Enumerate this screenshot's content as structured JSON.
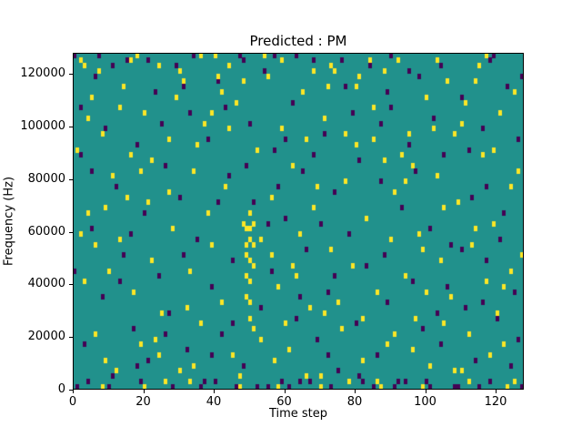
{
  "chart_data": {
    "type": "heatmap",
    "title": "Predicted : PM",
    "xlabel": "Time step",
    "ylabel": "Frequency (Hz)",
    "x_range": [
      0,
      128
    ],
    "y_range": [
      0,
      128000
    ],
    "x_ticks": [
      0,
      20,
      40,
      60,
      80,
      100,
      120
    ],
    "y_ticks": [
      0,
      20000,
      40000,
      60000,
      80000,
      100000,
      120000
    ],
    "grid_cols": 128,
    "grid_rows": 64,
    "legend": "none",
    "grid": false,
    "colors": {
      "background": "#21918c",
      "high": "#fde725",
      "low": "#440154",
      "frame": "#000000"
    },
    "cells": {
      "yellow": [
        [
          2,
          62
        ],
        [
          5,
          55
        ],
        [
          8,
          48
        ],
        [
          3,
          20
        ],
        [
          4,
          33
        ],
        [
          6,
          10
        ],
        [
          9,
          5
        ],
        [
          11,
          40
        ],
        [
          13,
          28
        ],
        [
          14,
          57
        ],
        [
          16,
          44
        ],
        [
          17,
          18
        ],
        [
          19,
          8
        ],
        [
          20,
          52
        ],
        [
          21,
          35
        ],
        [
          22,
          24
        ],
        [
          24,
          61
        ],
        [
          25,
          14
        ],
        [
          27,
          47
        ],
        [
          28,
          30
        ],
        [
          30,
          3
        ],
        [
          31,
          58
        ],
        [
          33,
          22
        ],
        [
          34,
          41
        ],
        [
          36,
          12
        ],
        [
          37,
          50
        ],
        [
          39,
          27
        ],
        [
          40,
          63
        ],
        [
          42,
          16
        ],
        [
          43,
          38
        ],
        [
          45,
          6
        ],
        [
          46,
          54
        ],
        [
          48,
          31
        ],
        [
          49,
          25
        ],
        [
          50,
          20
        ],
        [
          50,
          28
        ],
        [
          49,
          17
        ],
        [
          51,
          23
        ],
        [
          50,
          13
        ],
        [
          49,
          30
        ],
        [
          51,
          27
        ],
        [
          50,
          33
        ],
        [
          49,
          21
        ],
        [
          50,
          16
        ],
        [
          50,
          24
        ],
        [
          49,
          27
        ],
        [
          51,
          31
        ],
        [
          50,
          30
        ],
        [
          52,
          45
        ],
        [
          53,
          9
        ],
        [
          55,
          59
        ],
        [
          56,
          36
        ],
        [
          58,
          19
        ],
        [
          59,
          49
        ],
        [
          61,
          7
        ],
        [
          62,
          42
        ],
        [
          64,
          29
        ],
        [
          65,
          56
        ],
        [
          67,
          15
        ],
        [
          68,
          34
        ],
        [
          70,
          2
        ],
        [
          71,
          51
        ],
        [
          73,
          26
        ],
        [
          74,
          60
        ],
        [
          76,
          11
        ],
        [
          77,
          39
        ],
        [
          79,
          23
        ],
        [
          80,
          46
        ],
        [
          82,
          5
        ],
        [
          83,
          32
        ],
        [
          85,
          53
        ],
        [
          86,
          18
        ],
        [
          88,
          43
        ],
        [
          89,
          8
        ],
        [
          91,
          37
        ],
        [
          92,
          62
        ],
        [
          94,
          21
        ],
        [
          95,
          48
        ],
        [
          97,
          13
        ],
        [
          98,
          29
        ],
        [
          100,
          55
        ],
        [
          101,
          4
        ],
        [
          103,
          40
        ],
        [
          104,
          24
        ],
        [
          106,
          58
        ],
        [
          107,
          17
        ],
        [
          109,
          35
        ],
        [
          110,
          50
        ],
        [
          112,
          10
        ],
        [
          113,
          27
        ],
        [
          115,
          61
        ],
        [
          116,
          44
        ],
        [
          118,
          6
        ],
        [
          119,
          31
        ],
        [
          121,
          52
        ],
        [
          122,
          19
        ],
        [
          124,
          38
        ],
        [
          125,
          56
        ],
        [
          127,
          25
        ],
        [
          1,
          45
        ],
        [
          7,
          60
        ],
        [
          12,
          3
        ],
        [
          18,
          63
        ],
        [
          23,
          9
        ],
        [
          29,
          55
        ],
        [
          35,
          46
        ],
        [
          41,
          59
        ],
        [
          47,
          2
        ],
        [
          54,
          63
        ],
        [
          60,
          12
        ],
        [
          66,
          47
        ],
        [
          72,
          57
        ],
        [
          78,
          1
        ],
        [
          84,
          62
        ],
        [
          90,
          28
        ],
        [
          96,
          7
        ],
        [
          102,
          49
        ],
        [
          108,
          3
        ],
        [
          114,
          58
        ],
        [
          120,
          14
        ],
        [
          126,
          41
        ],
        [
          4,
          51
        ],
        [
          10,
          22
        ],
        [
          15,
          36
        ],
        [
          26,
          1
        ],
        [
          32,
          15
        ],
        [
          38,
          33
        ],
        [
          44,
          49
        ],
        [
          57,
          5
        ],
        [
          63,
          21
        ],
        [
          69,
          38
        ],
        [
          75,
          16
        ],
        [
          81,
          59
        ],
        [
          87,
          0
        ],
        [
          93,
          44
        ],
        [
          99,
          26
        ],
        [
          105,
          12
        ],
        [
          111,
          54
        ],
        [
          117,
          20
        ],
        [
          123,
          0
        ],
        [
          8,
          0
        ],
        [
          20,
          0
        ],
        [
          33,
          1
        ],
        [
          47,
          0
        ],
        [
          58,
          0
        ],
        [
          70,
          0
        ],
        [
          86,
          1
        ],
        [
          99,
          0
        ],
        [
          112,
          1
        ],
        [
          125,
          1
        ],
        [
          3,
          61
        ],
        [
          16,
          62
        ],
        [
          30,
          60
        ],
        [
          44,
          61
        ],
        [
          59,
          62
        ],
        [
          73,
          61
        ],
        [
          88,
          60
        ],
        [
          103,
          62
        ],
        [
          117,
          63
        ],
        [
          6,
          27
        ],
        [
          13,
          53
        ],
        [
          22,
          43
        ],
        [
          36,
          63
        ],
        [
          51,
          11
        ],
        [
          66,
          2
        ],
        [
          80,
          57
        ],
        [
          94,
          39
        ],
        [
          108,
          48
        ],
        [
          122,
          8
        ],
        [
          27,
          37
        ],
        [
          42,
          56
        ],
        [
          56,
          25
        ],
        [
          71,
          14
        ],
        [
          85,
          47
        ],
        [
          100,
          18
        ],
        [
          114,
          30
        ],
        [
          2,
          29
        ],
        [
          19,
          41
        ],
        [
          34,
          4
        ],
        [
          48,
          58
        ],
        [
          62,
          23
        ],
        [
          77,
          48
        ],
        [
          91,
          10
        ],
        [
          105,
          34
        ],
        [
          119,
          45
        ],
        [
          9,
          34
        ],
        [
          24,
          6
        ],
        [
          39,
          52
        ],
        [
          53,
          28
        ],
        [
          68,
          60
        ],
        [
          82,
          13
        ],
        [
          96,
          42
        ],
        [
          110,
          3
        ],
        [
          124,
          22
        ]
      ],
      "purple": [
        [
          0,
          63
        ],
        [
          2,
          44
        ],
        [
          3,
          8
        ],
        [
          5,
          30
        ],
        [
          6,
          59
        ],
        [
          8,
          17
        ],
        [
          9,
          49
        ],
        [
          11,
          2
        ],
        [
          12,
          38
        ],
        [
          14,
          25
        ],
        [
          15,
          62
        ],
        [
          17,
          11
        ],
        [
          18,
          46
        ],
        [
          20,
          33
        ],
        [
          21,
          5
        ],
        [
          23,
          56
        ],
        [
          24,
          21
        ],
        [
          26,
          42
        ],
        [
          27,
          14
        ],
        [
          29,
          61
        ],
        [
          30,
          36
        ],
        [
          32,
          7
        ],
        [
          33,
          52
        ],
        [
          35,
          28
        ],
        [
          36,
          0
        ],
        [
          38,
          47
        ],
        [
          39,
          19
        ],
        [
          41,
          58
        ],
        [
          42,
          10
        ],
        [
          44,
          40
        ],
        [
          45,
          24
        ],
        [
          47,
          63
        ],
        [
          48,
          4
        ],
        [
          50,
          50
        ],
        [
          51,
          35
        ],
        [
          53,
          15
        ],
        [
          54,
          60
        ],
        [
          56,
          22
        ],
        [
          57,
          45
        ],
        [
          59,
          1
        ],
        [
          60,
          32
        ],
        [
          62,
          54
        ],
        [
          63,
          13
        ],
        [
          65,
          41
        ],
        [
          66,
          26
        ],
        [
          68,
          62
        ],
        [
          69,
          9
        ],
        [
          71,
          48
        ],
        [
          72,
          18
        ],
        [
          74,
          37
        ],
        [
          75,
          3
        ],
        [
          77,
          57
        ],
        [
          78,
          29
        ],
        [
          80,
          12
        ],
        [
          81,
          43
        ],
        [
          83,
          23
        ],
        [
          84,
          61
        ],
        [
          86,
          6
        ],
        [
          87,
          39
        ],
        [
          89,
          16
        ],
        [
          90,
          53
        ],
        [
          92,
          1
        ],
        [
          93,
          34
        ],
        [
          95,
          46
        ],
        [
          96,
          20
        ],
        [
          98,
          59
        ],
        [
          99,
          11
        ],
        [
          101,
          30
        ],
        [
          102,
          51
        ],
        [
          104,
          8
        ],
        [
          105,
          44
        ],
        [
          107,
          27
        ],
        [
          108,
          0
        ],
        [
          110,
          55
        ],
        [
          111,
          15
        ],
        [
          113,
          36
        ],
        [
          114,
          5
        ],
        [
          116,
          49
        ],
        [
          117,
          24
        ],
        [
          119,
          63
        ],
        [
          120,
          13
        ],
        [
          122,
          33
        ],
        [
          123,
          57
        ],
        [
          125,
          18
        ],
        [
          126,
          47
        ],
        [
          1,
          0
        ],
        [
          4,
          1
        ],
        [
          10,
          0
        ],
        [
          19,
          1
        ],
        [
          28,
          0
        ],
        [
          37,
          1
        ],
        [
          46,
          0
        ],
        [
          55,
          0
        ],
        [
          64,
          1
        ],
        [
          73,
          0
        ],
        [
          82,
          1
        ],
        [
          91,
          0
        ],
        [
          100,
          1
        ],
        [
          109,
          0
        ],
        [
          118,
          1
        ],
        [
          127,
          0
        ],
        [
          61,
          0
        ],
        [
          67,
          1
        ],
        [
          52,
          0
        ],
        [
          40,
          1
        ],
        [
          85,
          0
        ],
        [
          94,
          1
        ],
        [
          115,
          0
        ],
        [
          7,
          63
        ],
        [
          21,
          62
        ],
        [
          34,
          63
        ],
        [
          48,
          62
        ],
        [
          63,
          63
        ],
        [
          76,
          62
        ],
        [
          90,
          63
        ],
        [
          104,
          61
        ],
        [
          118,
          62
        ],
        [
          13,
          20
        ],
        [
          25,
          50
        ],
        [
          31,
          25
        ],
        [
          43,
          53
        ],
        [
          49,
          42
        ],
        [
          58,
          38
        ],
        [
          64,
          17
        ],
        [
          70,
          31
        ],
        [
          79,
          52
        ],
        [
          88,
          25
        ],
        [
          97,
          41
        ],
        [
          106,
          19
        ],
        [
          112,
          45
        ],
        [
          121,
          28
        ],
        [
          124,
          4
        ],
        [
          16,
          29
        ],
        [
          2,
          53
        ],
        [
          39,
          6
        ],
        [
          55,
          31
        ],
        [
          68,
          44
        ],
        [
          81,
          2
        ],
        [
          95,
          60
        ],
        [
          110,
          26
        ],
        [
          126,
          9
        ],
        [
          5,
          41
        ],
        [
          18,
          4
        ],
        [
          31,
          57
        ],
        [
          45,
          12
        ],
        [
          60,
          47
        ],
        [
          74,
          21
        ],
        [
          89,
          56
        ],
        [
          103,
          14
        ],
        [
          117,
          38
        ],
        [
          11,
          61
        ],
        [
          26,
          10
        ],
        [
          41,
          35
        ],
        [
          57,
          63
        ],
        [
          72,
          6
        ],
        [
          87,
          50
        ],
        [
          101,
          0
        ],
        [
          116,
          16
        ],
        [
          0,
          22
        ],
        [
          127,
          59
        ]
      ]
    }
  }
}
